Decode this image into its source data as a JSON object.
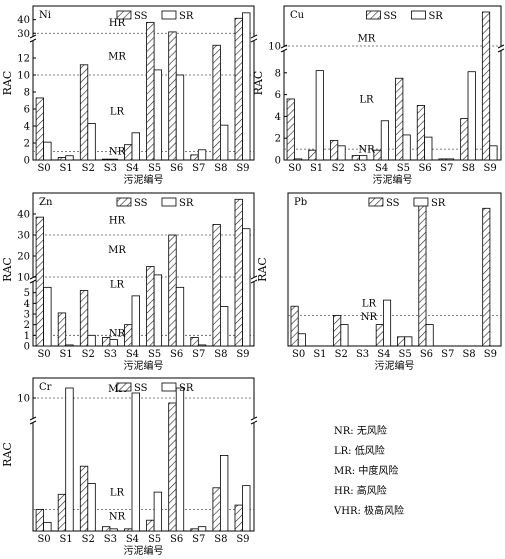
{
  "charts": [
    {
      "metal": "Ni",
      "type": "bar",
      "categories": [
        "S0",
        "S1",
        "S2",
        "S3",
        "S4",
        "S5",
        "S6",
        "S7",
        "S8",
        "S9"
      ],
      "ylabel": "RAC",
      "xlabel": "污泥编号",
      "broken_axis": true,
      "lower_range": [
        0,
        14
      ],
      "lower_ticks": [
        0,
        2,
        4,
        6,
        8,
        10,
        12
      ],
      "upper_range": [
        28,
        50
      ],
      "upper_ticks": [
        30,
        40
      ],
      "thresholds": [
        {
          "value": 30,
          "label": "HR"
        },
        {
          "value": 10,
          "label": "MR"
        },
        {
          "value": 1,
          "label": "NR"
        }
      ],
      "zone_labels": [
        {
          "text": "HR",
          "value": 33
        },
        {
          "text": "MR",
          "value": 11.5
        },
        {
          "text": "LR",
          "value": 5
        },
        {
          "text": "NR",
          "value": 0.3
        }
      ],
      "series": [
        {
          "name": "SS",
          "values": [
            7.3,
            0.3,
            11.2,
            0.1,
            1.8,
            38,
            31,
            0.6,
            13.5,
            41
          ]
        },
        {
          "name": "SR",
          "values": [
            2.1,
            0.5,
            4.3,
            0.1,
            3.2,
            10.6,
            10.0,
            1.2,
            4.1,
            45
          ]
        }
      ]
    },
    {
      "metal": "Cu",
      "type": "bar",
      "categories": [
        "S0",
        "S1",
        "S2",
        "S3",
        "S4",
        "S5",
        "S6",
        "S7",
        "S8",
        "S9"
      ],
      "ylabel": "RAC",
      "xlabel": "污泥编号",
      "broken_axis": true,
      "lower_range": [
        0,
        10
      ],
      "lower_ticks": [
        0,
        2,
        4,
        6,
        8
      ],
      "upper_range": [
        10,
        20
      ],
      "upper_ticks": [
        10
      ],
      "thresholds": [
        {
          "value": 10,
          "label": "MR"
        },
        {
          "value": 1,
          "label": "NR"
        }
      ],
      "zone_labels": [
        {
          "text": "MR",
          "value": 10.4
        },
        {
          "text": "LR",
          "value": 5
        },
        {
          "text": "NR",
          "value": 0.4
        }
      ],
      "series": [
        {
          "name": "SS",
          "values": [
            5.6,
            0.9,
            1.8,
            0.4,
            0.9,
            7.5,
            5.0,
            0.1,
            3.8,
            18.5
          ]
        },
        {
          "name": "SR",
          "values": [
            0.1,
            8.2,
            1.3,
            0.4,
            3.6,
            2.3,
            2.1,
            0.1,
            8.1,
            1.3
          ]
        }
      ]
    },
    {
      "metal": "Zn",
      "type": "bar",
      "categories": [
        "S0",
        "S1",
        "S2",
        "S3",
        "S4",
        "S5",
        "S6",
        "S7",
        "S8",
        "S9"
      ],
      "ylabel": "RAC",
      "xlabel": "污泥编号",
      "broken_axis": true,
      "lower_range": [
        0,
        6
      ],
      "lower_ticks": [
        0,
        1,
        2,
        3,
        4,
        5
      ],
      "upper_range": [
        10,
        50
      ],
      "upper_ticks": [
        10,
        20,
        30,
        40
      ],
      "thresholds": [
        {
          "value": 30,
          "label": "HR"
        },
        {
          "value": 10,
          "label": "MR"
        },
        {
          "value": 1,
          "label": "NR"
        }
      ],
      "zone_labels": [
        {
          "text": "HR",
          "value": 34
        },
        {
          "text": "MR",
          "value": 20
        },
        {
          "text": "LR",
          "value": 5.2
        },
        {
          "text": "NR",
          "value": 0.6
        }
      ],
      "series": [
        {
          "name": "SS",
          "values": [
            38.5,
            3.1,
            5.2,
            0.8,
            2.0,
            15,
            30,
            0.8,
            35,
            47
          ]
        },
        {
          "name": "SR",
          "values": [
            5.5,
            0.1,
            1.0,
            0.6,
            4.7,
            11,
            5.5,
            0.1,
            3.7,
            33
          ]
        }
      ]
    },
    {
      "metal": "Pb",
      "type": "bar",
      "categories": [
        "S0",
        "S1",
        "S2",
        "S3",
        "S4",
        "S5",
        "S6",
        "S7",
        "S8",
        "S9"
      ],
      "ylabel": "RAC",
      "xlabel": "污泥编号",
      "broken_axis": false,
      "lower_range": [
        0,
        5
      ],
      "lower_ticks": [],
      "thresholds": [
        {
          "value": 1,
          "label": "NR"
        }
      ],
      "zone_labels": [
        {
          "text": "LR",
          "value": 1.2
        },
        {
          "text": "NR",
          "value": 0.75
        }
      ],
      "series": [
        {
          "name": "SS",
          "values": [
            1.3,
            0,
            1.0,
            0,
            0.7,
            0.3,
            4.7,
            0,
            0,
            4.5
          ]
        },
        {
          "name": "SR",
          "values": [
            0.4,
            0,
            0.7,
            0,
            1.5,
            0.3,
            0.7,
            0,
            0,
            0
          ]
        }
      ]
    },
    {
      "metal": "Cr",
      "type": "bar",
      "categories": [
        "S0",
        "S1",
        "S2",
        "S3",
        "S4",
        "S5",
        "S6",
        "S7",
        "S8",
        "S9"
      ],
      "ylabel": "RAC",
      "xlabel": "污泥编号",
      "broken_axis": true,
      "lower_range": [
        0,
        5
      ],
      "lower_ticks": [],
      "upper_range": [
        8,
        12
      ],
      "upper_ticks": [
        10
      ],
      "thresholds": [
        {
          "value": 10,
          "label": "MR"
        },
        {
          "value": 1,
          "label": "NR"
        }
      ],
      "zone_labels": [
        {
          "text": "MR",
          "value": 10.3
        },
        {
          "text": "LR",
          "value": 1.5
        },
        {
          "text": "NR",
          "value": 0.4
        }
      ],
      "series": [
        {
          "name": "SS",
          "values": [
            1.0,
            1.7,
            3.0,
            0.2,
            0.1,
            0.5,
            9.5,
            0.1,
            2.0,
            1.2
          ]
        },
        {
          "name": "SR",
          "values": [
            0.4,
            11.0,
            2.2,
            0.1,
            10.5,
            1.8,
            11.0,
            0.2,
            3.5,
            2.1
          ]
        }
      ]
    }
  ],
  "legend": [
    "NR: 无风险",
    "LR: 低风险",
    "MR: 中度风险",
    "HR: 高风险",
    "VHR: 极高风险"
  ]
}
